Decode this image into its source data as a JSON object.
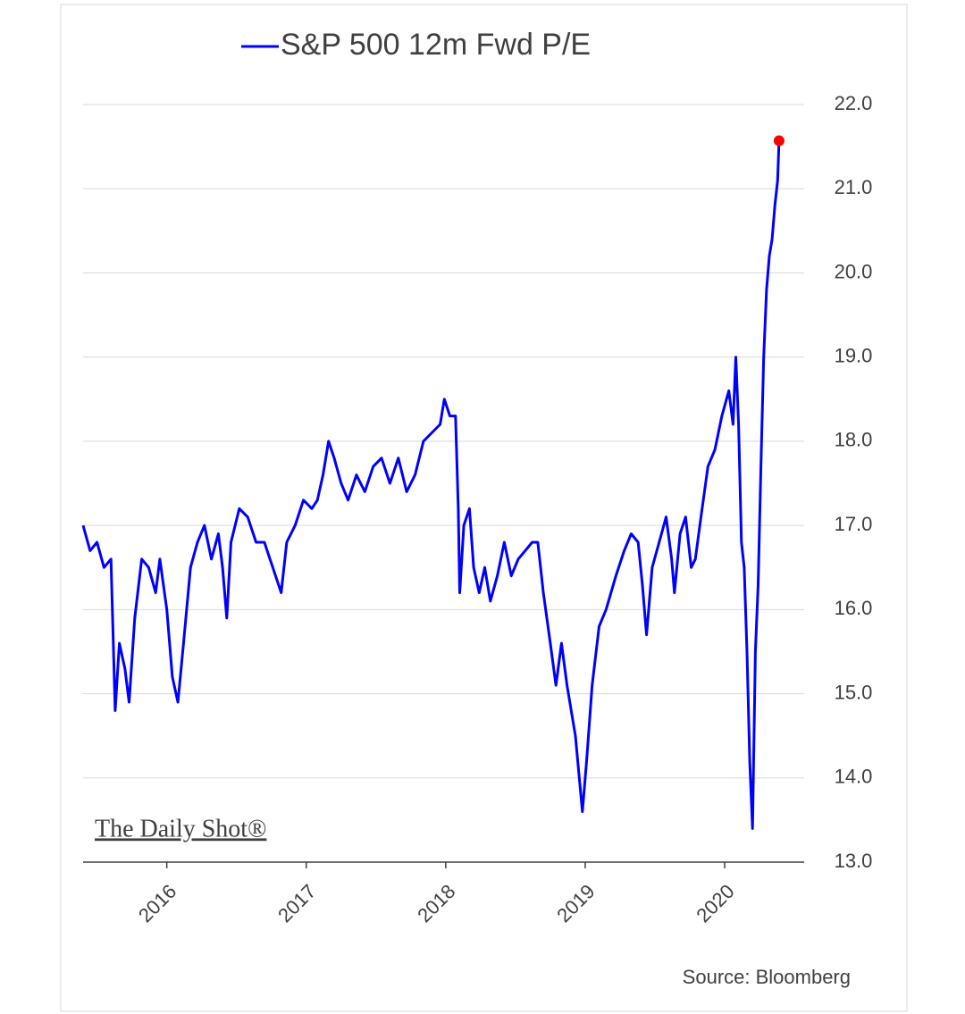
{
  "chart_data": {
    "type": "line",
    "x": [
      2015.4,
      2015.45,
      2015.5,
      2015.55,
      2015.6,
      2015.63,
      2015.66,
      2015.7,
      2015.73,
      2015.77,
      2015.82,
      2015.87,
      2015.92,
      2015.95,
      2016.0,
      2016.04,
      2016.08,
      2016.12,
      2016.17,
      2016.22,
      2016.27,
      2016.32,
      2016.37,
      2016.4,
      2016.43,
      2016.46,
      2016.52,
      2016.58,
      2016.64,
      2016.7,
      2016.76,
      2016.82,
      2016.86,
      2016.92,
      2016.98,
      2017.04,
      2017.08,
      2017.12,
      2017.16,
      2017.2,
      2017.25,
      2017.3,
      2017.36,
      2017.42,
      2017.48,
      2017.54,
      2017.6,
      2017.66,
      2017.72,
      2017.78,
      2017.84,
      2017.9,
      2017.96,
      2017.99,
      2018.03,
      2018.07,
      2018.09,
      2018.1,
      2018.13,
      2018.17,
      2018.2,
      2018.24,
      2018.28,
      2018.32,
      2018.37,
      2018.42,
      2018.47,
      2018.52,
      2018.57,
      2018.62,
      2018.66,
      2018.7,
      2018.75,
      2018.79,
      2018.83,
      2018.87,
      2018.93,
      2018.98,
      2019.01,
      2019.05,
      2019.1,
      2019.15,
      2019.22,
      2019.28,
      2019.33,
      2019.38,
      2019.41,
      2019.44,
      2019.48,
      2019.53,
      2019.58,
      2019.62,
      2019.64,
      2019.68,
      2019.72,
      2019.76,
      2019.79,
      2019.83,
      2019.88,
      2019.93,
      2019.98,
      2020.03,
      2020.06,
      2020.08,
      2020.1,
      2020.12,
      2020.14,
      2020.16,
      2020.18,
      2020.2,
      2020.22,
      2020.24,
      2020.26,
      2020.28,
      2020.3,
      2020.32,
      2020.34,
      2020.36,
      2020.38,
      2020.39
    ],
    "series": [
      {
        "name": "S&P 500 12m Fwd P/E",
        "color": "#0000ff",
        "values": [
          17.0,
          16.7,
          16.8,
          16.5,
          16.6,
          14.8,
          15.6,
          15.3,
          14.9,
          15.9,
          16.6,
          16.5,
          16.2,
          16.6,
          16.0,
          15.2,
          14.9,
          15.6,
          16.5,
          16.8,
          17.0,
          16.6,
          16.9,
          16.5,
          15.9,
          16.8,
          17.2,
          17.1,
          16.8,
          16.8,
          16.5,
          16.2,
          16.8,
          17.0,
          17.3,
          17.2,
          17.3,
          17.6,
          18.0,
          17.8,
          17.5,
          17.3,
          17.6,
          17.4,
          17.7,
          17.8,
          17.5,
          17.8,
          17.4,
          17.6,
          18.0,
          18.1,
          18.2,
          18.5,
          18.3,
          18.3,
          17.2,
          16.2,
          17.0,
          17.2,
          16.5,
          16.2,
          16.5,
          16.1,
          16.4,
          16.8,
          16.4,
          16.6,
          16.7,
          16.8,
          16.8,
          16.2,
          15.6,
          15.1,
          15.6,
          15.1,
          14.5,
          13.6,
          14.2,
          15.1,
          15.8,
          16.0,
          16.4,
          16.7,
          16.9,
          16.8,
          16.3,
          15.7,
          16.5,
          16.8,
          17.1,
          16.6,
          16.2,
          16.9,
          17.1,
          16.5,
          16.6,
          17.1,
          17.7,
          17.9,
          18.3,
          18.6,
          18.2,
          19.0,
          18.2,
          16.8,
          16.5,
          15.5,
          14.2,
          13.4,
          15.5,
          16.3,
          17.7,
          19.0,
          19.8,
          20.2,
          20.4,
          20.8,
          21.1,
          21.57
        ]
      }
    ],
    "last_point_color": "#ff0000",
    "xlim": [
      2015.4,
      2020.57
    ],
    "xticks": [
      2016,
      2017,
      2018,
      2019,
      2020
    ],
    "ylim": [
      13,
      22
    ],
    "yticks": [
      {
        "value": 13,
        "label": "13.0"
      },
      {
        "value": 14,
        "label": "14.0"
      },
      {
        "value": 15,
        "label": "15.0"
      },
      {
        "value": 16,
        "label": "16.0"
      },
      {
        "value": 17,
        "label": "17.0"
      },
      {
        "value": 18,
        "label": "18.0"
      },
      {
        "value": 19,
        "label": "19.0"
      },
      {
        "value": 20,
        "label": "20.0"
      },
      {
        "value": 21,
        "label": "21.0"
      },
      {
        "value": 22,
        "label": "22.0"
      }
    ],
    "grid": true,
    "watermark": "The Daily Shot®",
    "source": "Source: Bloomberg"
  }
}
